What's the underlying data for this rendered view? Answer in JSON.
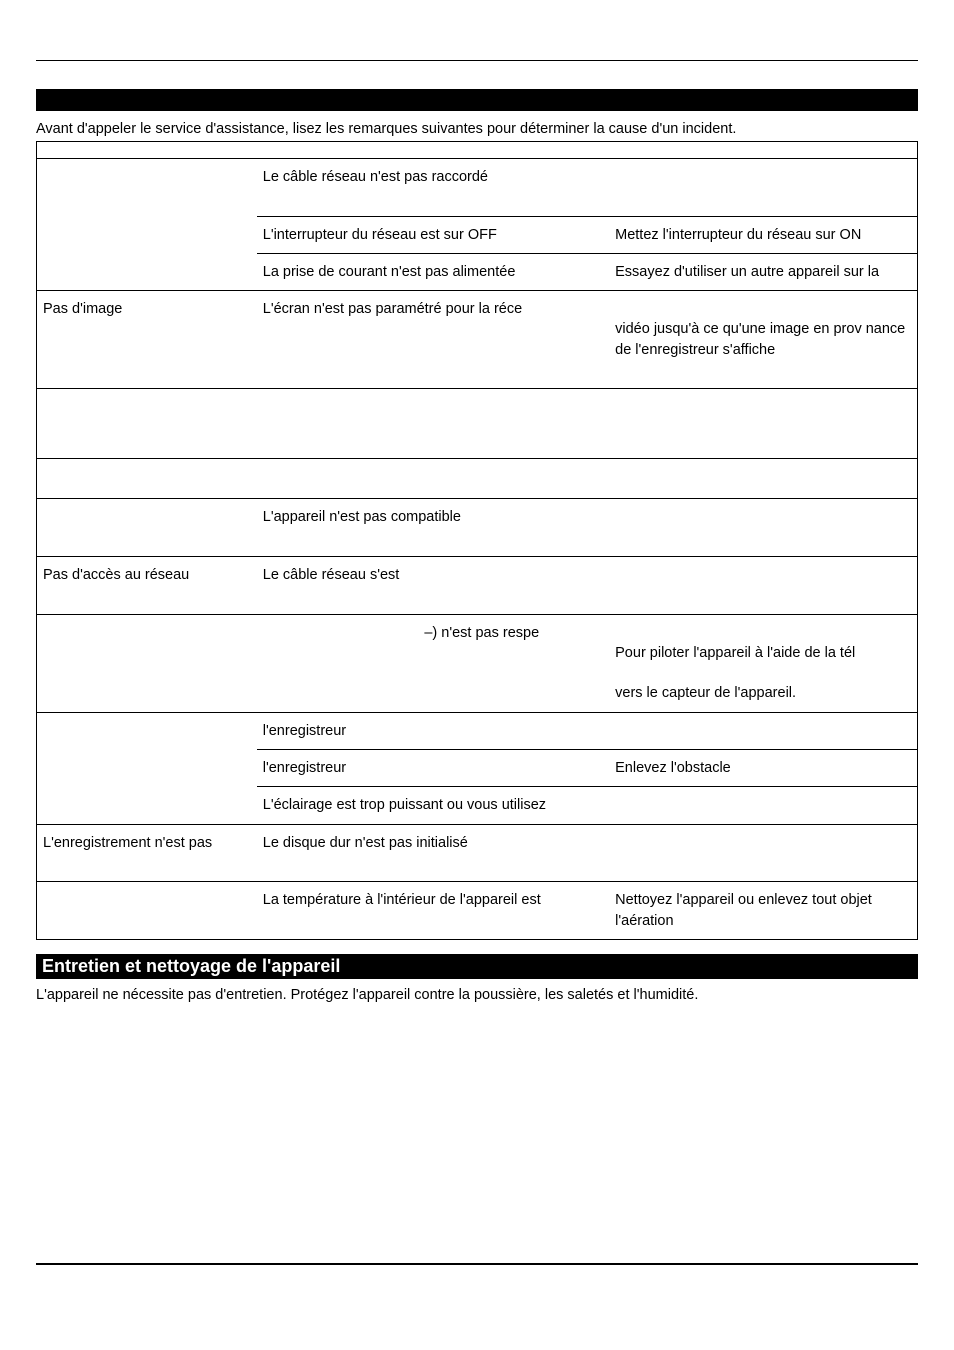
{
  "intro": "Avant d'appeler le service d'assistance, lisez les remarques suivantes pour déterminer la cause d'un incident.",
  "rows": [
    {
      "c1": "",
      "c2": "Le câble réseau n'est pas raccordé",
      "c3": ""
    },
    {
      "c1": "",
      "c2": "L'interrupteur du réseau est sur OFF",
      "c3": "Mettez l'interrupteur du réseau sur ON"
    },
    {
      "c1": "",
      "c2": "La prise de courant n'est pas alimentée",
      "c3": "Essayez d'utiliser un autre appareil sur la"
    },
    {
      "c1": "Pas d'image",
      "c2": "L'écran n'est pas paramétré pour la réce",
      "c3": "vidéo jusqu'à ce qu'une image en prov nance de l'enregistreur s'affiche"
    },
    {
      "c1": "",
      "c2": "",
      "c3": ""
    },
    {
      "c1": "",
      "c2": "",
      "c3": ""
    },
    {
      "c1": "",
      "c2": "L'appareil n'est pas compatible",
      "c3": ""
    },
    {
      "c1": "Pas d'accès au réseau",
      "c2": "Le câble réseau s'est",
      "c3": ""
    },
    {
      "c1": "",
      "c2a": "–) n'est pas respe",
      "c3a": "Pour piloter l'appareil à l'aide de la tél",
      "c3b": "vers le capteur de l'appareil."
    },
    {
      "c1": "",
      "c2": "l'enregistreur",
      "c3": ""
    },
    {
      "c1": "",
      "c2": "l'enregistreur",
      "c3": "Enlevez l'obstacle"
    },
    {
      "c1": "",
      "c2": "L'éclairage est trop puissant ou vous utilisez",
      "c3": ""
    },
    {
      "c1": "L'enregistrement n'est pas",
      "c2": "Le disque dur n'est pas initialisé",
      "c3": ""
    },
    {
      "c1": "",
      "c2": "La température à l'intérieur de l'appareil est",
      "c3": "Nettoyez l'appareil ou enlevez tout objet l'aération"
    }
  ],
  "section_header": "Entretien et nettoyage de l'appareil",
  "body_text": "L'appareil ne nécessite pas d'entretien. Protégez l'appareil contre la poussière, les saletés et l'humidité."
}
